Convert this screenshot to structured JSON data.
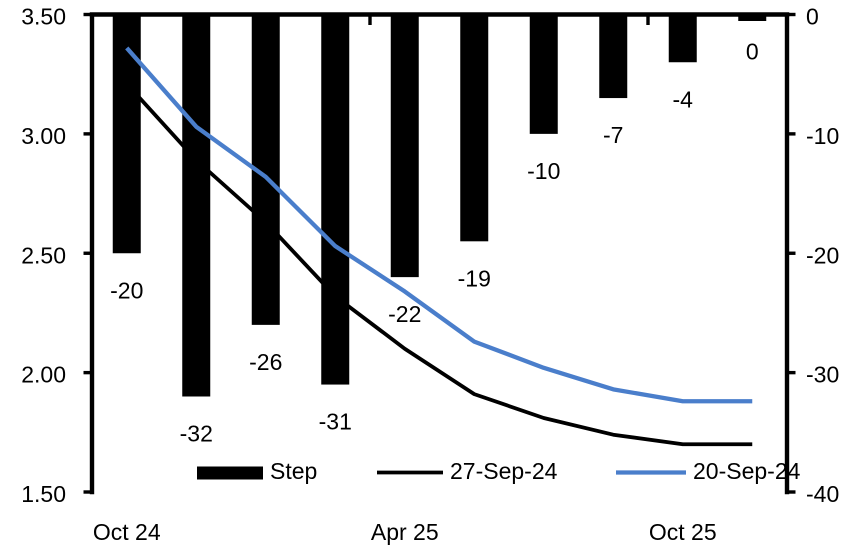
{
  "chart_data": {
    "type": "combo-bar-line",
    "title": "",
    "n_categories": 10,
    "x_axis": {
      "tick_labels": [
        "Oct 24",
        "Apr 25",
        "Oct 25"
      ],
      "tick_positions": [
        0,
        4,
        8
      ]
    },
    "left_axis": {
      "min": 1.5,
      "max": 3.5,
      "tick_labels": [
        "3.50",
        "3.00",
        "2.50",
        "2.00",
        "1.50"
      ],
      "tick_values": [
        3.5,
        3.0,
        2.5,
        2.0,
        1.5
      ]
    },
    "right_axis": {
      "min": -40,
      "max": 0,
      "tick_labels": [
        "0",
        "-10",
        "-20",
        "-30",
        "-40"
      ],
      "tick_values": [
        0,
        -10,
        -20,
        -30,
        -40
      ]
    },
    "series": [
      {
        "name": "Step",
        "type": "bar",
        "axis": "right",
        "color": "#000000",
        "values": [
          -20,
          -32,
          -26,
          -31,
          -22,
          -19,
          -10,
          -7,
          -4,
          0
        ],
        "data_labels": [
          "-20",
          "-32",
          "-26",
          "-31",
          "-22",
          "-19",
          "-10",
          "-7",
          "-4",
          "0"
        ]
      },
      {
        "name": "27-Sep-24",
        "type": "line",
        "axis": "left",
        "color": "#000000",
        "stroke_width": 3.8,
        "values": [
          3.21,
          2.89,
          2.63,
          2.32,
          2.1,
          1.91,
          1.81,
          1.74,
          1.7,
          1.7
        ]
      },
      {
        "name": "20-Sep-24",
        "type": "line",
        "axis": "left",
        "color": "#4a7ecb",
        "stroke_width": 4.3,
        "values": [
          3.36,
          3.03,
          2.82,
          2.53,
          2.34,
          2.13,
          2.02,
          1.93,
          1.88,
          1.88
        ]
      }
    ],
    "legend": {
      "position": "bottom",
      "entries": [
        "Step",
        "27-Sep-24",
        "20-Sep-24"
      ]
    },
    "grid": false,
    "background": "#ffffff",
    "axis_color": "#000000"
  }
}
